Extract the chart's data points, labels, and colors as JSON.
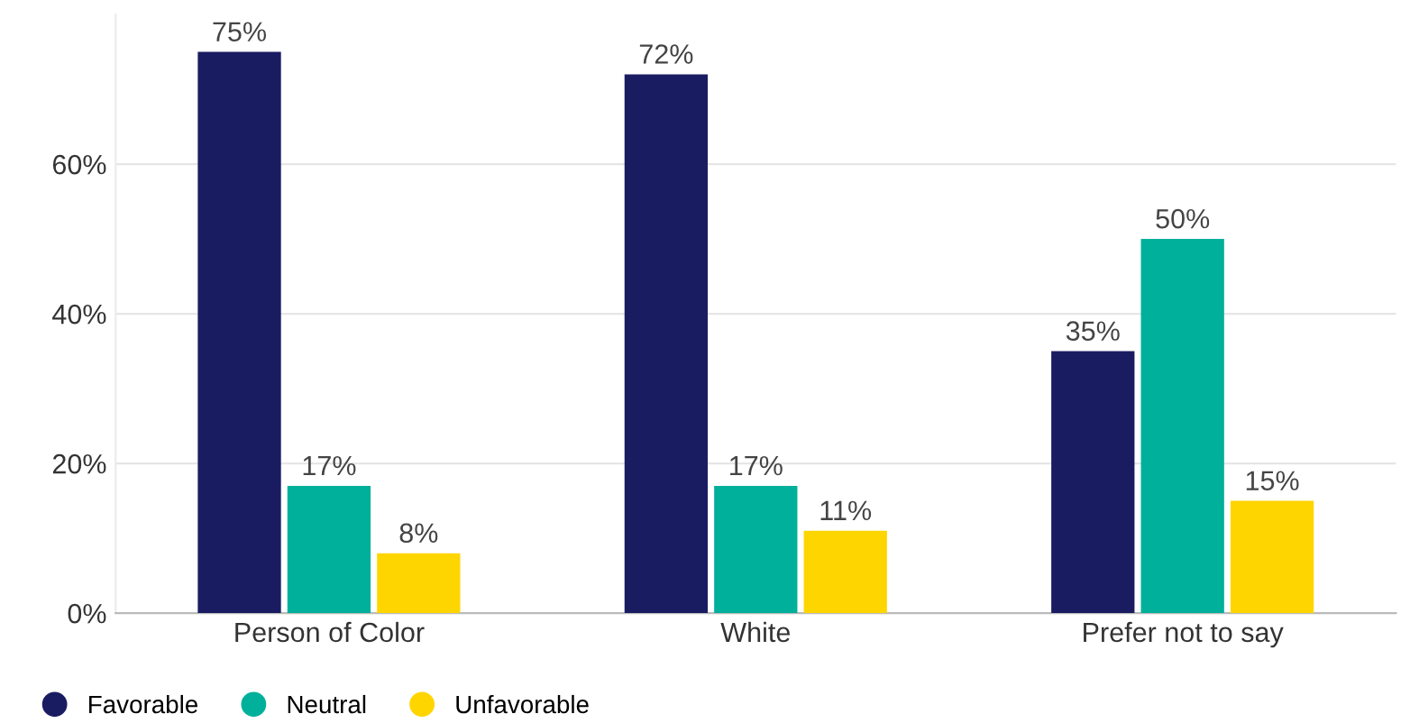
{
  "chart_data": {
    "type": "bar",
    "categories": [
      "Person of Color",
      "White",
      "Prefer not to say"
    ],
    "series": [
      {
        "name": "Favorable",
        "color": "#1a1c62",
        "values": [
          75,
          72,
          35
        ],
        "value_labels": [
          "75%",
          "72%",
          "35%"
        ]
      },
      {
        "name": "Neutral",
        "color": "#00b09b",
        "values": [
          17,
          17,
          50
        ],
        "value_labels": [
          "17%",
          "17%",
          "50%"
        ]
      },
      {
        "name": "Unfavorable",
        "color": "#ffd500",
        "values": [
          8,
          11,
          15
        ],
        "value_labels": [
          "8%",
          "11%",
          "15%"
        ]
      }
    ],
    "ylim": [
      0,
      80
    ],
    "yticks": [
      {
        "value": 0,
        "label": "0%"
      },
      {
        "value": 20,
        "label": "20%"
      },
      {
        "value": 40,
        "label": "40%"
      },
      {
        "value": 60,
        "label": "60%"
      }
    ],
    "grid": "y",
    "legend": "bottom left"
  }
}
